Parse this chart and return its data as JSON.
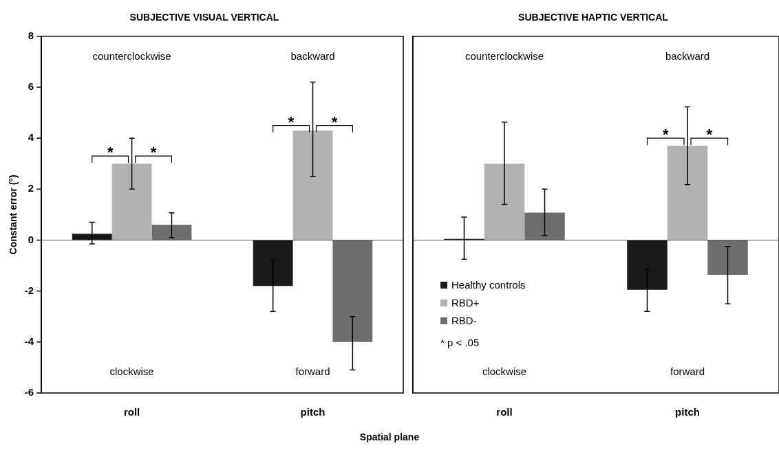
{
  "chart_data": [
    {
      "type": "bar",
      "title": "SUBJECTIVE VISUAL VERTICAL",
      "xlabel": "Spatial plane",
      "ylabel": "Constant error (°)",
      "categories": [
        "roll",
        "pitch"
      ],
      "series": [
        {
          "color": "#1a1a1a",
          "values": [
            0.25,
            -1.8
          ],
          "errors": [
            [
              -0.15,
              0.7
            ],
            [
              -2.8,
              -0.8
            ]
          ]
        },
        {
          "color": "#b2b2b2",
          "values": [
            3.0,
            4.3
          ],
          "errors": [
            [
              2.0,
              4.0
            ],
            [
              2.5,
              6.2
            ]
          ]
        },
        {
          "color": "#6e6e6e",
          "values": [
            0.6,
            -4.0
          ],
          "errors": [
            [
              0.1,
              1.07
            ],
            [
              -5.1,
              -3.0
            ]
          ]
        }
      ],
      "ylim": [
        -6,
        8
      ],
      "yticks": [
        -6,
        -4,
        -2,
        0,
        2,
        4,
        6,
        8
      ],
      "legend": false,
      "annotations": [
        "counterclockwise",
        "backward",
        "clockwise",
        "forward",
        {
          "text": "*",
          "x": "roll",
          "y": 3.3
        },
        {
          "text": "*",
          "x": "roll",
          "y": 3.3
        },
        {
          "text": "*",
          "x": "pitch",
          "y": 4.5
        },
        {
          "text": "*",
          "x": "pitch",
          "y": 4.5
        }
      ]
    },
    {
      "type": "bar",
      "title": "SUBJECTIVE HAPTIC VERTICAL",
      "categories": [
        "roll",
        "pitch"
      ],
      "series": [
        {
          "name": "Healthy controls",
          "color": "#1a1a1a",
          "values": [
            0.05,
            -1.95
          ],
          "errors": [
            [
              -0.75,
              0.9
            ],
            [
              -2.8,
              -1.15
            ]
          ]
        },
        {
          "name": "RBD+",
          "color": "#b2b2b2",
          "values": [
            3.0,
            3.7
          ],
          "errors": [
            [
              1.4,
              4.63
            ],
            [
              2.18,
              5.23
            ]
          ]
        },
        {
          "name": "RBD-",
          "color": "#6e6e6e",
          "values": [
            1.08,
            -1.36
          ],
          "errors": [
            [
              0.18,
              2.0
            ],
            [
              -2.5,
              -0.25
            ]
          ]
        }
      ],
      "ylim": [
        -6,
        8
      ],
      "yticks": [
        -6,
        -4,
        -2,
        0,
        2,
        4,
        6,
        8
      ],
      "legend": "bottom left",
      "tick_labels": "x",
      "annotations": [
        "counterclockwise",
        "backward",
        "clockwise",
        "forward",
        {
          "text": "*",
          "x": "pitch",
          "y": 4.0
        },
        {
          "text": "*",
          "x": "pitch",
          "y": 4.0
        },
        "* p < .05"
      ]
    }
  ]
}
